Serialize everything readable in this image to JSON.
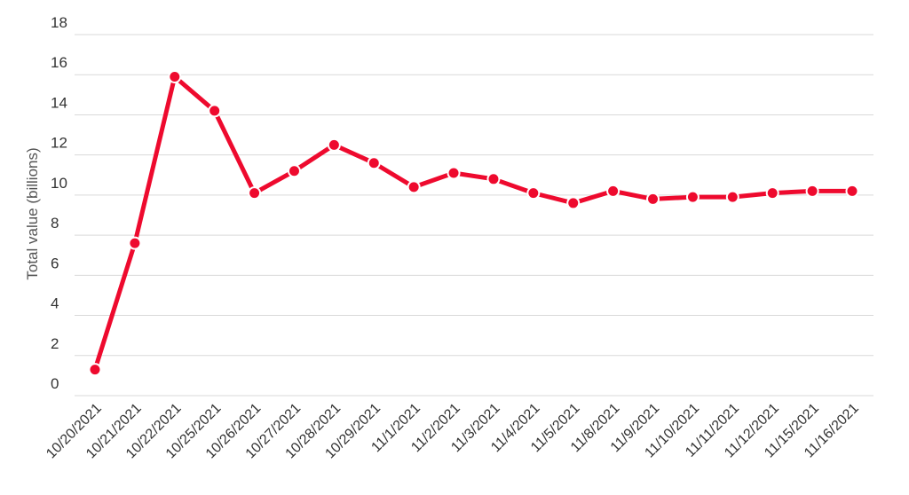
{
  "chart_data": {
    "type": "line",
    "title": "",
    "xlabel": "",
    "ylabel": "Total value (billions)",
    "ylim": [
      0,
      18
    ],
    "yticks": [
      0,
      2,
      4,
      6,
      8,
      10,
      12,
      14,
      16,
      18
    ],
    "grid": true,
    "legend": "none",
    "categories": [
      "10/20/2021",
      "10/21/2021",
      "10/22/2021",
      "10/25/2021",
      "10/26/2021",
      "10/27/2021",
      "10/28/2021",
      "10/29/2021",
      "11/1/2021",
      "11/2/2021",
      "11/3/2021",
      "11/4/2021",
      "11/5/2021",
      "11/8/2021",
      "11/9/2021",
      "11/10/2021",
      "11/11/2021",
      "11/12/2021",
      "11/15/2021",
      "11/16/2021"
    ],
    "series": [
      {
        "color": "#ee0a2e",
        "values": [
          1.3,
          7.6,
          15.9,
          14.2,
          10.1,
          11.2,
          12.5,
          11.6,
          10.4,
          11.1,
          10.8,
          10.1,
          9.6,
          10.2,
          9.8,
          9.9,
          9.9,
          10.1,
          10.2,
          10.2
        ]
      }
    ]
  }
}
